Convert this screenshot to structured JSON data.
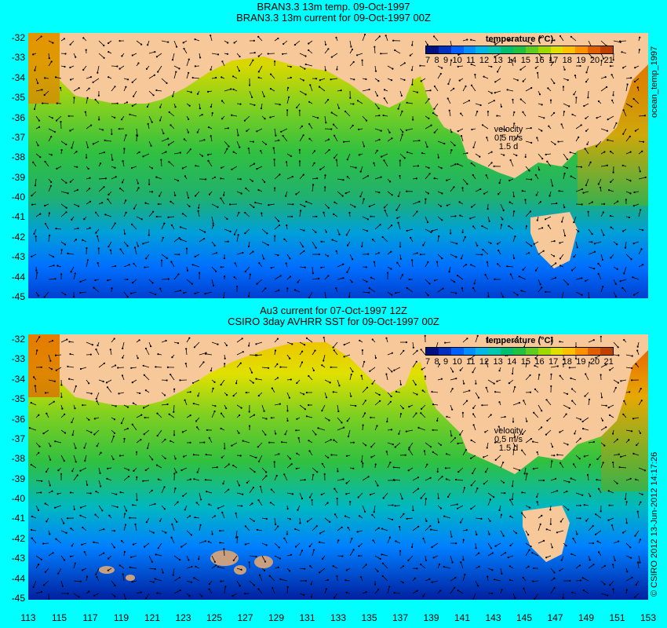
{
  "top_panel": {
    "title_line1": "BRAN3.3 13m temp. 09-Oct-1997",
    "title_line2": "BRAN3.3 13m current for 09-Oct-1997 00Z",
    "side_label": "ocean_temp_1997"
  },
  "bottom_panel": {
    "title_line1": "Au3 current for 07-Oct-1997 12Z",
    "title_line2": "CSIRO 3day AVHRR SST for 09-Oct-1997 00Z",
    "side_label": "© CSIRO 2012  13-Jun-2012 14:17:26"
  },
  "legend": {
    "title": "temperature (°C)",
    "ticks": [
      "7",
      "8",
      "9",
      "10",
      "11",
      "12",
      "13",
      "14",
      "15",
      "16",
      "17",
      "18",
      "19",
      "20",
      "21"
    ],
    "colors": [
      "#001080",
      "#0030c0",
      "#0060ff",
      "#0090ff",
      "#00b8e8",
      "#00c8b0",
      "#00c070",
      "#20c040",
      "#60cc20",
      "#a0d800",
      "#e0e000",
      "#ffc000",
      "#ff9000",
      "#e06000",
      "#c04000"
    ]
  },
  "velocity_key": {
    "label": "velocity",
    "value1": "0.5 m/s",
    "value2": "1.5 d"
  },
  "y_axis_labels": [
    "-32",
    "-33",
    "-34",
    "-35",
    "-36",
    "-37",
    "-38",
    "-39",
    "-40",
    "-41",
    "-42",
    "-43",
    "-44",
    "-45"
  ],
  "x_axis_labels": [
    "113",
    "115",
    "117",
    "119",
    "121",
    "123",
    "125",
    "127",
    "129",
    "131",
    "133",
    "135",
    "137",
    "139",
    "141",
    "143",
    "145",
    "147",
    "149",
    "151",
    "153"
  ],
  "colors": {
    "background": "#00ffff",
    "land": "#f7c89a"
  }
}
